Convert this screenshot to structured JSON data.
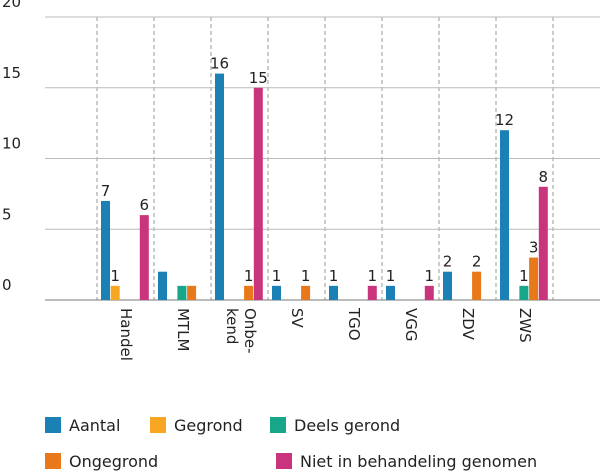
{
  "chart_data": {
    "type": "bar",
    "categories": [
      "Handel",
      "MTLM",
      "Onbe-\nkend",
      "SV",
      "TGO",
      "VGG",
      "ZDV",
      "ZWS"
    ],
    "series": [
      {
        "name": "Aantal",
        "color": "#1b80b3",
        "values": [
          7,
          2,
          16,
          1,
          1,
          1,
          2,
          12
        ],
        "value_labels": [
          "7",
          null,
          "16",
          "1",
          "1",
          "1",
          "2",
          "12"
        ]
      },
      {
        "name": "Gegrond",
        "color": "#f6a623",
        "values": [
          1,
          0,
          0,
          0,
          0,
          0,
          0,
          0
        ],
        "value_labels": [
          "1",
          null,
          null,
          null,
          null,
          null,
          null,
          null
        ]
      },
      {
        "name": "Deels gerond",
        "color": "#17a68a",
        "values": [
          0,
          1,
          0,
          0,
          0,
          0,
          0,
          1
        ],
        "value_labels": [
          null,
          null,
          null,
          null,
          null,
          null,
          null,
          "1"
        ]
      },
      {
        "name": "Ongegrond",
        "color": "#e8781a",
        "values": [
          0,
          1,
          1,
          1,
          0,
          0,
          2,
          3
        ],
        "value_labels": [
          null,
          null,
          "1",
          "1",
          null,
          null,
          "2",
          "3"
        ]
      },
      {
        "name": "Niet in behandeling genomen",
        "color": "#c9357d",
        "values": [
          6,
          0,
          15,
          0,
          1,
          1,
          0,
          8
        ],
        "value_labels": [
          "6",
          null,
          "15",
          null,
          "1",
          "1",
          null,
          "8"
        ]
      }
    ],
    "ylim": [
      0,
      20
    ],
    "yticks": [
      0,
      5,
      10,
      15,
      20
    ],
    "grid": true,
    "legend": "bottom"
  }
}
